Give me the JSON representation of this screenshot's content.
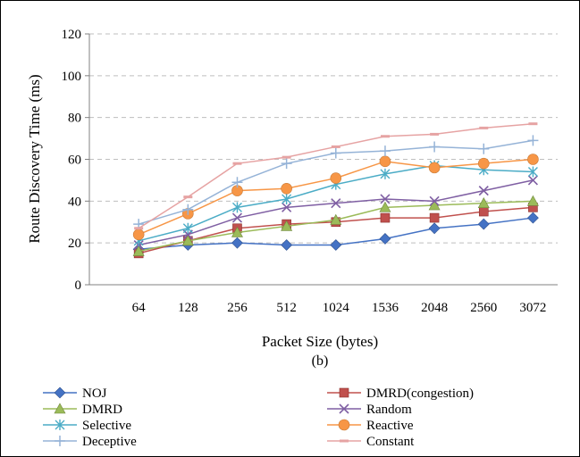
{
  "chart_data": {
    "type": "line",
    "title": "",
    "subtitle": "(b)",
    "xlabel": "Packet Size (bytes)",
    "ylabel": "Route Discovery Time (ms)",
    "categories": [
      "64",
      "128",
      "256",
      "512",
      "1024",
      "1536",
      "2048",
      "2560",
      "3072"
    ],
    "ylim": [
      0,
      120
    ],
    "yticks": [
      0,
      20,
      40,
      60,
      80,
      100,
      120
    ],
    "grid": "horizontal-dashed",
    "legend_position": "bottom",
    "series": [
      {
        "name": "NOJ",
        "color": "#4472C4",
        "marker": "diamond",
        "values": [
          17,
          19,
          20,
          19,
          19,
          22,
          27,
          29,
          32
        ]
      },
      {
        "name": "DMRD(congestion)",
        "color": "#C0504D",
        "marker": "square",
        "values": [
          15,
          21,
          27,
          29,
          30,
          32,
          32,
          35,
          37
        ]
      },
      {
        "name": "DMRD",
        "color": "#9BBB59",
        "marker": "triangle",
        "values": [
          16,
          21,
          25,
          28,
          31,
          37,
          38,
          39,
          40
        ]
      },
      {
        "name": "Random",
        "color": "#7F5FA3",
        "marker": "x",
        "values": [
          19,
          24,
          32,
          37,
          39,
          41,
          40,
          45,
          50
        ]
      },
      {
        "name": "Selective",
        "color": "#4BACC6",
        "marker": "asterisk",
        "values": [
          21,
          27,
          37,
          41,
          48,
          53,
          57,
          55,
          54
        ]
      },
      {
        "name": "Reactive",
        "color": "#F79646",
        "marker": "circle",
        "values": [
          24,
          34,
          45,
          46,
          51,
          59,
          56,
          58,
          60
        ]
      },
      {
        "name": "Deceptive",
        "color": "#95B3D7",
        "marker": "plus",
        "values": [
          29,
          36,
          49,
          58,
          63,
          64,
          66,
          65,
          69
        ]
      },
      {
        "name": "Constant",
        "color": "#E6A3A3",
        "marker": "dash",
        "values": [
          27,
          42,
          58,
          61,
          66,
          71,
          72,
          75,
          77
        ]
      }
    ]
  }
}
